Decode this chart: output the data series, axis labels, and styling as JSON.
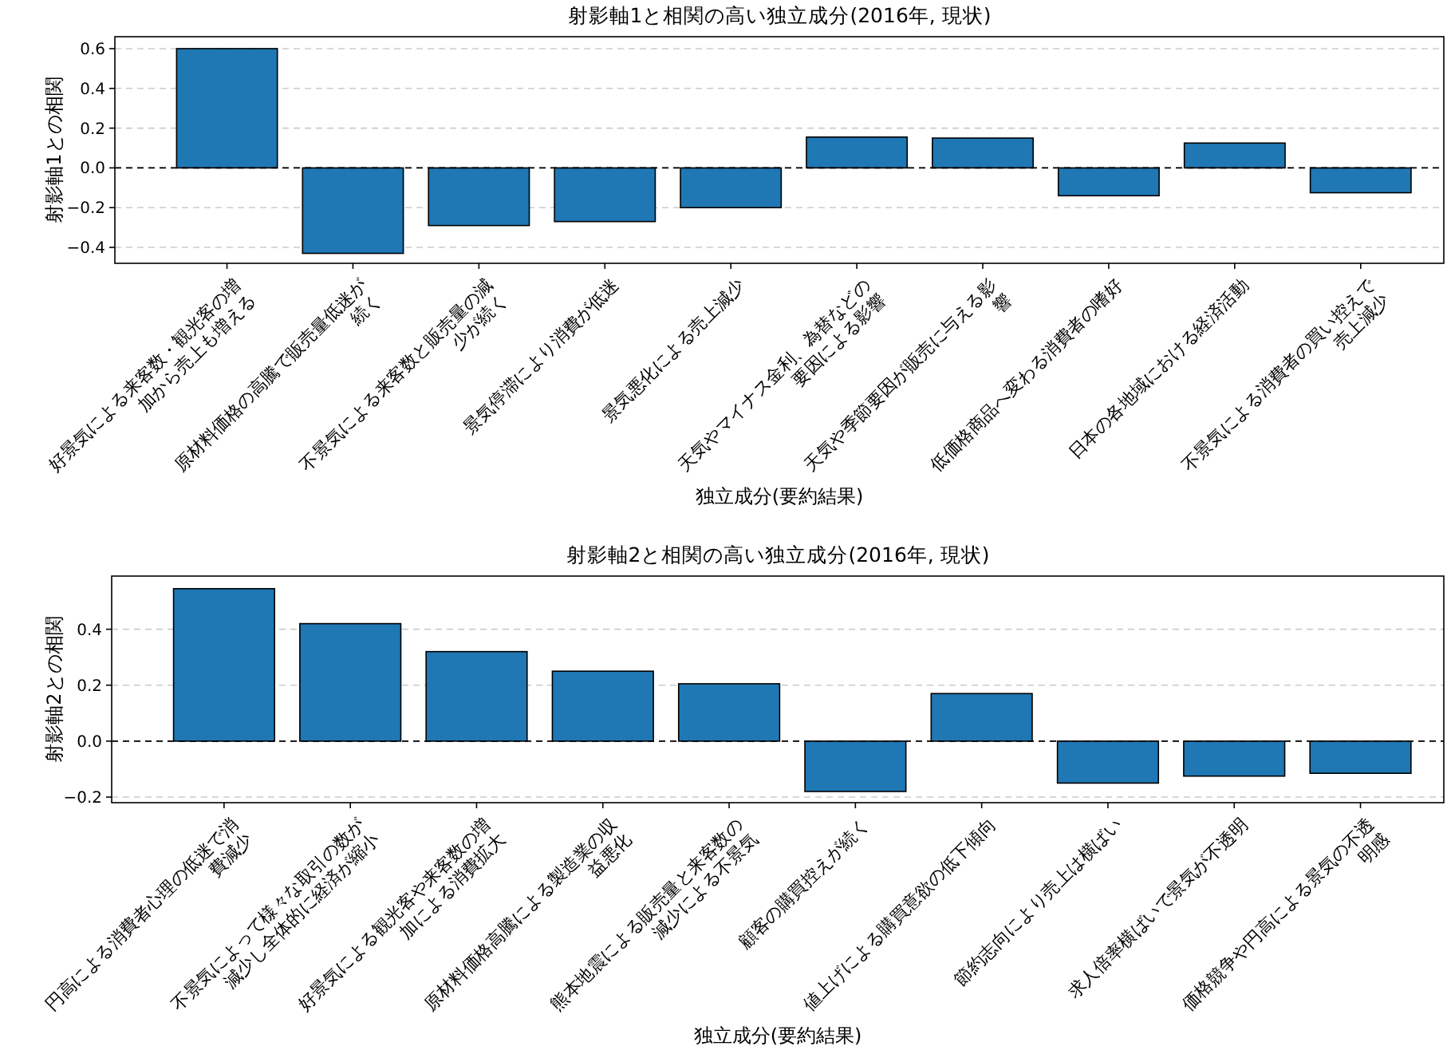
{
  "chart_data": [
    {
      "type": "bar",
      "title": "射影軸1と相関の高い独立成分(2016年, 現状)",
      "xlabel": "独立成分(要約結果)",
      "ylabel": "射影軸1との相関",
      "color": "#1f77b4",
      "categories": [
        "好景気による来客数・観光客の増加から売上も増える",
        "原材料価格の高騰で販売量低迷が続く",
        "不景気による来客数と販売量の減少が続く",
        "景気停滞により消費が低迷",
        "景気悪化による売上減少",
        "天気やマイナス金利、為替などの要因による影響",
        "天気や季節要因が販売に与える影響",
        "低価格商品へ変わる消費者の嗜好",
        "日本の各地域における経済活動",
        "不景気による消費者の買い控えで売上減少"
      ],
      "values": [
        0.6,
        -0.43,
        -0.29,
        -0.27,
        -0.2,
        0.155,
        0.15,
        -0.14,
        0.125,
        -0.125
      ],
      "ylim": [
        -0.48,
        0.66
      ],
      "yticks": [
        {
          "value": -0.4,
          "label": "−0.4"
        },
        {
          "value": -0.2,
          "label": "−0.2"
        },
        {
          "value": 0,
          "label": "0.0"
        },
        {
          "value": 0.2,
          "label": "0.2"
        },
        {
          "value": 0.4,
          "label": "0.4"
        },
        {
          "value": 0.6,
          "label": "0.6"
        }
      ],
      "grid": "y",
      "ref_lines": [
        {
          "axis": "y",
          "value": 0,
          "color": "#000000",
          "line_style": "dashed"
        }
      ]
    },
    {
      "type": "bar",
      "title": "射影軸2と相関の高い独立成分(2016年, 現状)",
      "xlabel": "独立成分(要約結果)",
      "ylabel": "射影軸2との相関",
      "color": "#1f77b4",
      "categories": [
        "円高による消費者心理の低迷で消費減少",
        "不景気によって様々な取引の数が減少し全体的に経済が縮小",
        "好景気による観光客や来客数の増加による消費拡大",
        "原材料価格高騰による製造業の収益悪化",
        "熊本地震による販売量と来客数の減少による不景気",
        "顧客の購買控えが続く",
        "値上げによる購買意欲の低下傾向",
        "節約志向により売上は横ばい",
        "求人倍率横ばいで景気が不透明",
        "価格競争や円高による景気の不透明感"
      ],
      "values": [
        0.545,
        0.42,
        0.32,
        0.25,
        0.205,
        -0.18,
        0.17,
        -0.15,
        -0.125,
        -0.115
      ],
      "ylim": [
        -0.22,
        0.59
      ],
      "yticks": [
        {
          "value": -0.2,
          "label": "−0.2"
        },
        {
          "value": 0,
          "label": "0.0"
        },
        {
          "value": 0.2,
          "label": "0.2"
        },
        {
          "value": 0.4,
          "label": "0.4"
        }
      ],
      "grid": "y",
      "ref_lines": [
        {
          "axis": "y",
          "value": 0,
          "color": "#000000",
          "line_style": "dashed"
        }
      ]
    }
  ]
}
